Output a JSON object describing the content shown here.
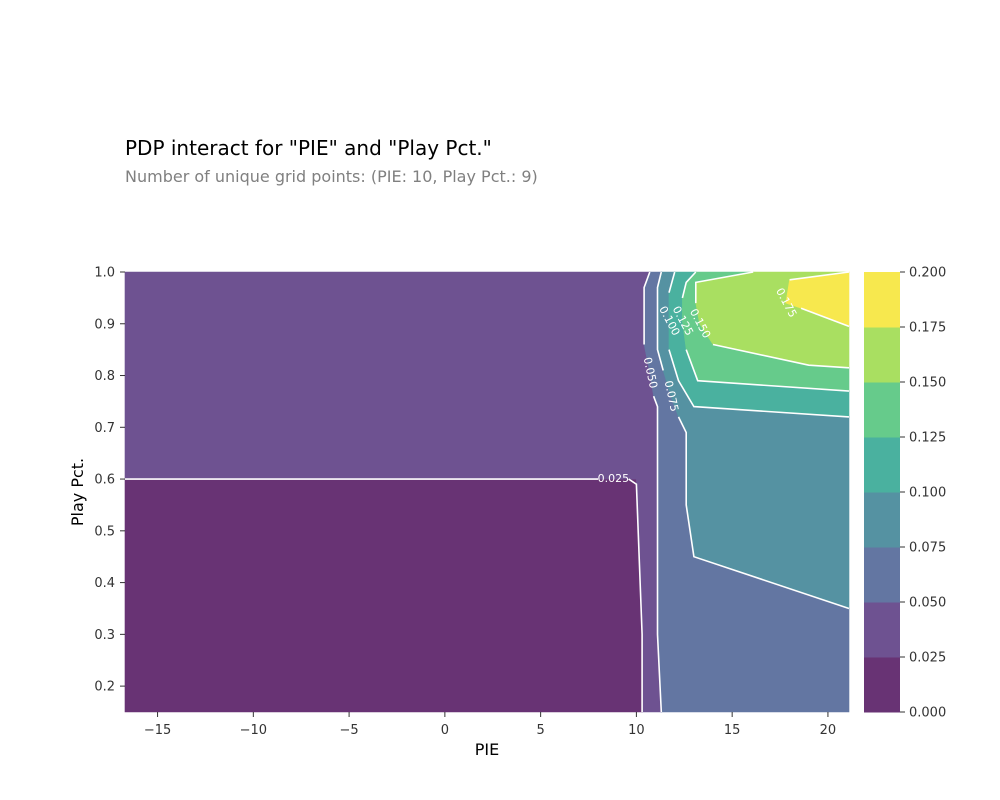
{
  "chart_data": {
    "type": "contour",
    "title": "PDP interact for \"PIE\" and \"Play Pct.\"",
    "subtitle": "Number of unique grid points: (PIE: 10, Play Pct.: 9)",
    "xlabel": "PIE",
    "ylabel": "Play Pct.",
    "xlim": [
      -16.7,
      21.1
    ],
    "ylim": [
      0.15,
      1.0
    ],
    "x_ticks": [
      -15,
      -10,
      -5,
      0,
      5,
      10,
      15,
      20
    ],
    "x_tick_labels": [
      "−15",
      "−10",
      "−5",
      "0",
      "5",
      "10",
      "15",
      "20"
    ],
    "y_ticks": [
      0.2,
      0.3,
      0.4,
      0.5,
      0.6,
      0.7,
      0.8,
      0.9,
      1.0
    ],
    "y_tick_labels": [
      "0.2",
      "0.3",
      "0.4",
      "0.5",
      "0.6",
      "0.7",
      "0.8",
      "0.9",
      "1.0"
    ],
    "levels": [
      0.0,
      0.025,
      0.05,
      0.075,
      0.1,
      0.125,
      0.15,
      0.175,
      0.2
    ],
    "colorbar_tick_labels": [
      "0.000",
      "0.025",
      "0.050",
      "0.075",
      "0.100",
      "0.125",
      "0.150",
      "0.175",
      "0.200"
    ],
    "level_colors": [
      "#683374",
      "#6e5291",
      "#6376a2",
      "#5592a2",
      "#4ab19f",
      "#66cb8b",
      "#a9df61",
      "#f7e84e"
    ],
    "contours": [
      {
        "level": 0.025,
        "label": "0.025",
        "label_at": [
          8.8,
          0.6
        ],
        "points": [
          [
            -16.7,
            0.6
          ],
          [
            8.0,
            0.6
          ]
        ],
        "points2": [
          [
            9.6,
            0.6
          ],
          [
            10.0,
            0.59
          ],
          [
            10.3,
            0.3
          ],
          [
            10.3,
            0.15
          ]
        ]
      },
      {
        "level": 0.05,
        "label": "0.050",
        "label_at": [
          10.7,
          0.805
        ],
        "points": [
          [
            10.7,
            1.0
          ],
          [
            10.4,
            0.97
          ],
          [
            10.4,
            0.86
          ]
        ],
        "points2": [
          [
            10.9,
            0.76
          ],
          [
            11.1,
            0.74
          ],
          [
            11.1,
            0.3
          ],
          [
            11.3,
            0.15
          ]
        ]
      },
      {
        "level": 0.075,
        "label": "0.075",
        "label_at": [
          11.8,
          0.76
        ],
        "points": [
          [
            11.3,
            1.0
          ],
          [
            11.1,
            0.97
          ],
          [
            11.1,
            0.85
          ],
          [
            11.4,
            0.81
          ]
        ],
        "points2": [
          [
            12.2,
            0.72
          ],
          [
            12.6,
            0.69
          ],
          [
            12.6,
            0.55
          ],
          [
            13.0,
            0.45
          ],
          [
            21.1,
            0.35
          ]
        ]
      },
      {
        "level": 0.1,
        "label": "0.100",
        "label_at": [
          11.7,
          0.905
        ],
        "points": [
          [
            12.0,
            1.0
          ],
          [
            11.7,
            0.96
          ]
        ],
        "points2": [
          [
            11.7,
            0.85
          ],
          [
            12.2,
            0.79
          ],
          [
            13.0,
            0.74
          ],
          [
            21.1,
            0.72
          ]
        ]
      },
      {
        "level": 0.125,
        "label": "0.125",
        "label_at": [
          12.4,
          0.905
        ],
        "points": [
          [
            13.1,
            1.0
          ],
          [
            12.6,
            0.98
          ],
          [
            12.4,
            0.95
          ]
        ],
        "points2": [
          [
            12.6,
            0.85
          ],
          [
            13.2,
            0.79
          ],
          [
            21.1,
            0.77
          ]
        ]
      },
      {
        "level": 0.15,
        "label": "0.150",
        "label_at": [
          13.3,
          0.9
        ],
        "points": [
          [
            16.1,
            1.0
          ],
          [
            13.1,
            0.98
          ],
          [
            13.1,
            0.94
          ]
        ],
        "points2": [
          [
            14.0,
            0.86
          ],
          [
            19.0,
            0.82
          ],
          [
            21.1,
            0.815
          ]
        ]
      },
      {
        "level": 0.175,
        "label": "0.175",
        "label_at": [
          17.8,
          0.94
        ],
        "points": [
          [
            21.1,
            1.0
          ],
          [
            18.0,
            0.985
          ]
        ],
        "points2": [
          [
            18.6,
            0.93
          ],
          [
            21.1,
            0.895
          ]
        ]
      }
    ]
  }
}
